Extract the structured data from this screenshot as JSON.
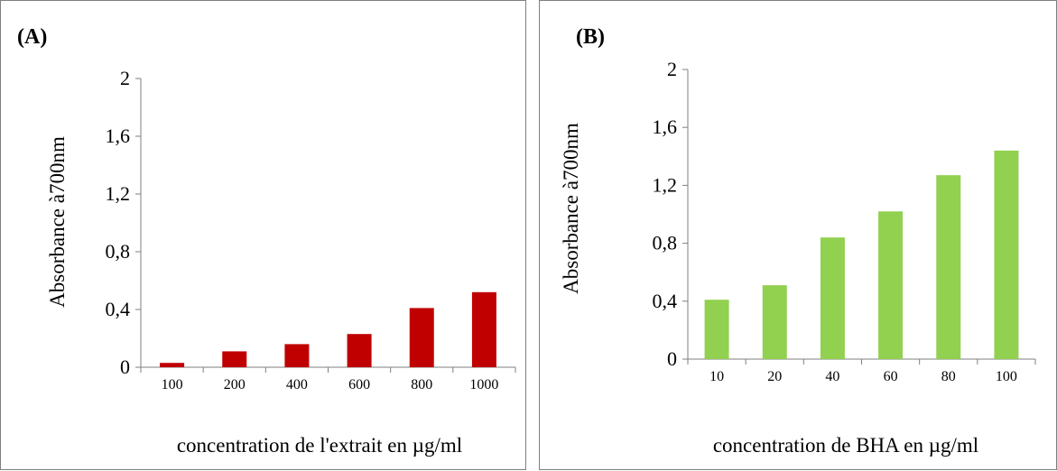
{
  "chart_data": [
    {
      "type": "bar",
      "panel_label": "(A)",
      "categories": [
        "100",
        "200",
        "400",
        "600",
        "800",
        "1000"
      ],
      "values": [
        0.03,
        0.11,
        0.16,
        0.23,
        0.41,
        0.52
      ],
      "xlabel": "concentration de l'extrait en µg/ml",
      "ylabel": "Absorbance à700nm",
      "ylim": [
        0,
        2
      ],
      "yticks": [
        "0",
        "0,4",
        "0,8",
        "1,2",
        "1,6",
        "2"
      ],
      "bar_color": "#c00000",
      "grid": false
    },
    {
      "type": "bar",
      "panel_label": "(B)",
      "categories": [
        "10",
        "20",
        "40",
        "60",
        "80",
        "100"
      ],
      "values": [
        0.41,
        0.51,
        0.84,
        1.02,
        1.27,
        1.44
      ],
      "xlabel": "concentration  de BHA en µg/ml",
      "ylabel": "Absorbance à700nm",
      "ylim": [
        0,
        2
      ],
      "yticks": [
        "0",
        "0,4",
        "0,8",
        "1,2",
        "1,6",
        "2"
      ],
      "bar_color": "#92d050",
      "grid": false
    }
  ]
}
